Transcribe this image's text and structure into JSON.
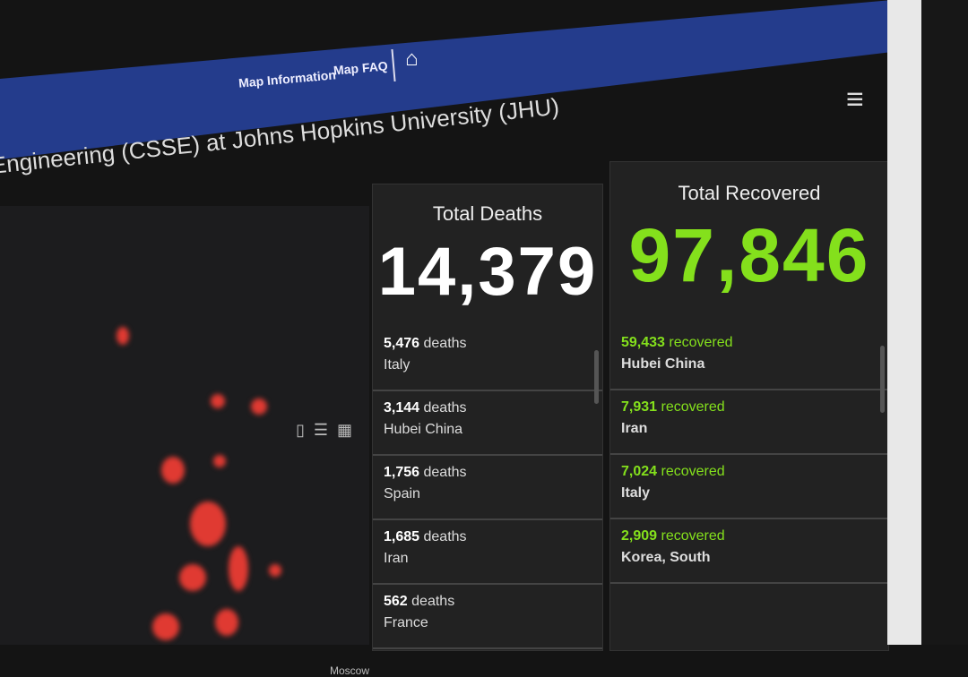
{
  "header": {
    "nav": [
      "Map Information",
      "Map FAQ"
    ],
    "home_icon": "home-icon",
    "menu_icon": "hamburger-menu-icon"
  },
  "title": "Engineering (CSSE) at Johns Hopkins University (JHU)",
  "map": {
    "label": "Moscow",
    "marker_color": "#e03a32"
  },
  "deaths": {
    "title": "Total Deaths",
    "total": "14,379",
    "unit": "deaths",
    "items": [
      {
        "count": "5,476",
        "place": "Italy"
      },
      {
        "count": "3,144",
        "place": "Hubei China"
      },
      {
        "count": "1,756",
        "place": "Spain"
      },
      {
        "count": "1,685",
        "place": "Iran"
      },
      {
        "count": "562",
        "place": "France"
      }
    ]
  },
  "recovered": {
    "title": "Total Recovered",
    "total": "97,846",
    "unit": "recovered",
    "color": "#84e01c",
    "items": [
      {
        "count": "59,433",
        "place": "Hubei China"
      },
      {
        "count": "7,931",
        "place": "Iran"
      },
      {
        "count": "7,024",
        "place": "Italy"
      },
      {
        "count": "2,909",
        "place": "Korea, South"
      }
    ]
  }
}
